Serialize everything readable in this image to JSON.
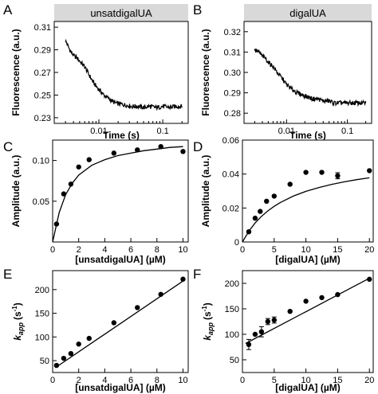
{
  "colors": {
    "header_bg": "#d9d9d9",
    "ink": "#000000",
    "background": "#ffffff"
  },
  "chart_data": [
    {
      "panel": "A",
      "type": "line",
      "header": "unsatdigalUA",
      "xlabel": "Time (s)",
      "ylabel": "Fluorescence (a.u.)",
      "xscale": "log",
      "xlim": [
        0.002,
        0.25
      ],
      "ylim": [
        0.225,
        0.315
      ],
      "xticks": [
        0.01,
        0.1
      ],
      "xticklabels": [
        "0.01",
        "0.1"
      ],
      "yticks": [
        0.23,
        0.25,
        0.27,
        0.29,
        0.31
      ],
      "yticklabels": [
        "0.23",
        "0.25",
        "0.27",
        "0.29",
        "0.31"
      ],
      "series": [
        {
          "noisy": true,
          "x": [
            0.003,
            0.0035,
            0.004,
            0.0045,
            0.005,
            0.006,
            0.007,
            0.008,
            0.009,
            0.01,
            0.012,
            0.015,
            0.018,
            0.022,
            0.027,
            0.033,
            0.04,
            0.05,
            0.06,
            0.08,
            0.1,
            0.13,
            0.16,
            0.2
          ],
          "y": [
            0.298,
            0.29,
            0.285,
            0.283,
            0.28,
            0.275,
            0.268,
            0.262,
            0.258,
            0.255,
            0.25,
            0.246,
            0.243,
            0.242,
            0.241,
            0.24,
            0.24,
            0.239,
            0.24,
            0.239,
            0.24,
            0.239,
            0.24,
            0.24
          ]
        }
      ]
    },
    {
      "panel": "B",
      "type": "line",
      "header": "digalUA",
      "xlabel": "Time (s)",
      "ylabel": "Fluorescence (a.u.)",
      "xscale": "log",
      "xlim": [
        0.002,
        0.25
      ],
      "ylim": [
        0.275,
        0.325
      ],
      "xticks": [
        0.01,
        0.1
      ],
      "xticklabels": [
        "0.01",
        "0.1"
      ],
      "yticks": [
        0.28,
        0.29,
        0.3,
        0.31,
        0.32
      ],
      "yticklabels": [
        "0.28",
        "0.29",
        "0.30",
        "0.31",
        "0.32"
      ],
      "series": [
        {
          "noisy": true,
          "x": [
            0.003,
            0.0035,
            0.004,
            0.0045,
            0.005,
            0.006,
            0.007,
            0.008,
            0.009,
            0.01,
            0.012,
            0.015,
            0.018,
            0.022,
            0.027,
            0.033,
            0.04,
            0.05,
            0.06,
            0.08,
            0.1,
            0.13,
            0.16,
            0.2
          ],
          "y": [
            0.311,
            0.31,
            0.308,
            0.307,
            0.305,
            0.303,
            0.3,
            0.298,
            0.296,
            0.294,
            0.292,
            0.29,
            0.289,
            0.288,
            0.287,
            0.287,
            0.286,
            0.286,
            0.285,
            0.285,
            0.285,
            0.285,
            0.285,
            0.285
          ]
        }
      ]
    },
    {
      "panel": "C",
      "type": "scatter",
      "xlabel": "[unsatdigalUA] (µM)",
      "ylabel": "Amplitude (a.u.)",
      "xlim": [
        0,
        10.4
      ],
      "ylim": [
        0,
        0.125
      ],
      "xticks": [
        0,
        2,
        4,
        6,
        8,
        10
      ],
      "xticklabels": [
        "0",
        "2",
        "4",
        "6",
        "8",
        "10"
      ],
      "yticks": [
        0.05,
        0.1
      ],
      "yticklabels": [
        "0.05",
        "0.10"
      ],
      "points": {
        "x": [
          0.3,
          0.85,
          1.4,
          2.0,
          2.8,
          4.7,
          6.5,
          8.3,
          10.0
        ],
        "y": [
          0.022,
          0.059,
          0.071,
          0.092,
          0.101,
          0.109,
          0.113,
          0.117,
          0.111
        ]
      },
      "fit": {
        "x": [
          0,
          0.5,
          1,
          1.5,
          2,
          3,
          4,
          5,
          6,
          7,
          8,
          9,
          10
        ],
        "y": [
          0,
          0.036,
          0.058,
          0.072,
          0.082,
          0.094,
          0.101,
          0.106,
          0.109,
          0.112,
          0.114,
          0.116,
          0.117
        ]
      }
    },
    {
      "panel": "D",
      "type": "scatter",
      "xlabel": "[digalUA] (µM)",
      "ylabel": "Amplitude (a.u.)",
      "xlim": [
        0,
        20.6
      ],
      "ylim": [
        0,
        0.06
      ],
      "xticks": [
        0,
        5,
        10,
        15,
        20
      ],
      "xticklabels": [
        "0",
        "5",
        "10",
        "15",
        "20"
      ],
      "yticks": [
        0,
        0.02,
        0.04,
        0.06
      ],
      "yticklabels": [
        "0",
        "0.02",
        "0.04",
        "0.06"
      ],
      "points": {
        "x": [
          1.0,
          2.0,
          2.8,
          3.8,
          5.0,
          7.5,
          10.0,
          12.5,
          15.0,
          20.0
        ],
        "y": [
          0.006,
          0.014,
          0.018,
          0.024,
          0.027,
          0.034,
          0.041,
          0.041,
          0.039,
          0.042
        ],
        "err": [
          0,
          0,
          0,
          0,
          0,
          0,
          0,
          0,
          0.0018,
          0
        ]
      },
      "fit": {
        "x": [
          0,
          1,
          2,
          3,
          4,
          5,
          6,
          8,
          10,
          12,
          14,
          16,
          18,
          20
        ],
        "y": [
          0,
          0.0063,
          0.0112,
          0.0151,
          0.0183,
          0.021,
          0.0233,
          0.027,
          0.0298,
          0.032,
          0.0339,
          0.0354,
          0.0367,
          0.0378
        ]
      }
    },
    {
      "panel": "E",
      "type": "scatter",
      "xlabel": "[unsatdigalUA] (µM)",
      "ylabel": "k_app (s⁻¹)",
      "ylabel_parts": {
        "k": "k",
        "sub": "app",
        "unit_open": "(s",
        "sup": "-1",
        "unit_close": ")"
      },
      "xlim": [
        0,
        10.4
      ],
      "ylim": [
        25,
        240
      ],
      "xticks": [
        0,
        2,
        4,
        6,
        8,
        10
      ],
      "xticklabels": [
        "0",
        "2",
        "4",
        "6",
        "8",
        "10"
      ],
      "yticks": [
        50,
        100,
        150,
        200
      ],
      "yticklabels": [
        "50",
        "100",
        "150",
        "200"
      ],
      "points": {
        "x": [
          0.3,
          0.85,
          1.4,
          2.0,
          2.8,
          4.7,
          6.5,
          8.3,
          10.0
        ],
        "y": [
          40,
          55,
          65,
          85,
          97,
          130,
          162,
          190,
          222
        ]
      },
      "fit": {
        "x": [
          0.2,
          10.0
        ],
        "y": [
          35,
          218
        ]
      }
    },
    {
      "panel": "F",
      "type": "scatter",
      "xlabel": "[digalUA] (µM)",
      "ylabel": "k_app (s⁻¹)",
      "ylabel_parts": {
        "k": "k",
        "sub": "app",
        "unit_open": "(s",
        "sup": "-1",
        "unit_close": ")"
      },
      "xlim": [
        0,
        20.6
      ],
      "ylim": [
        25,
        225
      ],
      "xticks": [
        0,
        5,
        10,
        15,
        20
      ],
      "xticklabels": [
        "0",
        "5",
        "10",
        "15",
        "20"
      ],
      "yticks": [
        50,
        100,
        150,
        200
      ],
      "yticklabels": [
        "50",
        "100",
        "150",
        "200"
      ],
      "points": {
        "x": [
          1.0,
          2.0,
          3.0,
          4.0,
          5.0,
          7.5,
          10.0,
          12.5,
          15.0,
          20.0
        ],
        "y": [
          80,
          100,
          105,
          125,
          128,
          145,
          165,
          172,
          178,
          208
        ],
        "err": [
          10,
          0,
          10,
          6,
          6,
          0,
          0,
          0,
          0,
          0
        ]
      },
      "fit": {
        "x": [
          0.5,
          20.0
        ],
        "y": [
          82,
          210
        ]
      }
    }
  ]
}
